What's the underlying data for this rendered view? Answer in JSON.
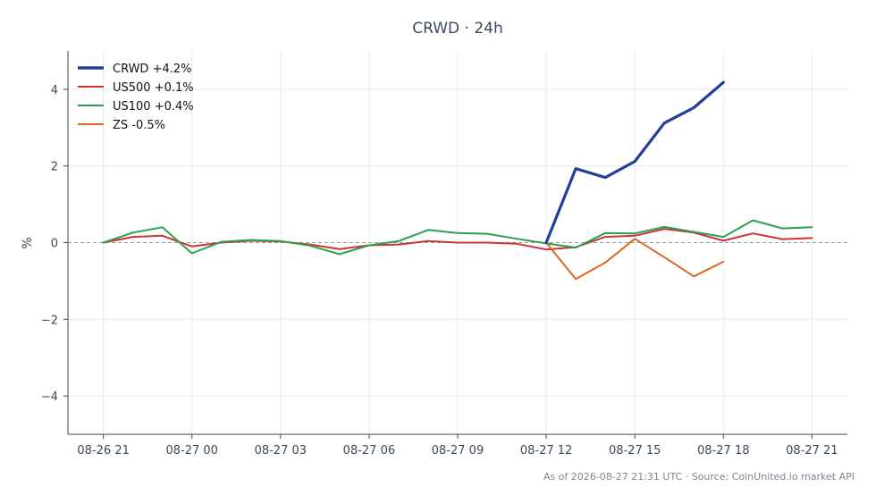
{
  "chart_data": {
    "type": "line",
    "title": "CRWD · 24h",
    "xlabel": "",
    "ylabel": "%",
    "x_tick_labels": [
      "08-26 21",
      "08-27 00",
      "08-27 03",
      "08-27 06",
      "08-27 09",
      "08-27 12",
      "08-27 15",
      "08-27 18",
      "08-27 21"
    ],
    "x_tick_positions": [
      0,
      3,
      6,
      9,
      12,
      15,
      18,
      21,
      24
    ],
    "x_range": [
      -1.2,
      25.2
    ],
    "y_ticks": [
      -4,
      -2,
      0,
      2,
      4
    ],
    "y_tick_labels": [
      "−4",
      "−2",
      "0",
      "2",
      "4"
    ],
    "ylim": [
      -5,
      5
    ],
    "grid": true,
    "zero_line": true,
    "legend_position": "top-left",
    "series": [
      {
        "name": "CRWD +4.2%",
        "color": "#1f3f99",
        "x": [
          15,
          16,
          17,
          18,
          19,
          20,
          21,
          22
        ],
        "y": [
          0.0,
          1.93,
          1.7,
          2.12,
          3.12,
          3.52,
          4.18,
          null
        ]
      },
      {
        "name": "US500 +0.1%",
        "color": "#cc3333",
        "x": [
          0,
          1,
          2,
          3,
          4,
          5,
          6,
          7,
          8,
          9,
          10,
          11,
          12,
          13,
          14,
          15,
          16,
          17,
          18,
          19,
          20,
          21,
          22,
          23,
          24
        ],
        "y": [
          0.0,
          0.15,
          0.18,
          -0.1,
          0.0,
          0.05,
          0.03,
          -0.05,
          -0.17,
          -0.07,
          -0.05,
          0.04,
          0.0,
          0.0,
          -0.03,
          -0.18,
          -0.12,
          0.15,
          0.18,
          0.36,
          0.26,
          0.05,
          0.24,
          0.09,
          0.12
        ]
      },
      {
        "name": "US100 +0.4%",
        "color": "#2e9e4f",
        "x": [
          0,
          1,
          2,
          3,
          4,
          5,
          6,
          7,
          8,
          9,
          10,
          11,
          12,
          13,
          14,
          15,
          16,
          17,
          18,
          19,
          20,
          21,
          22,
          23,
          24
        ],
        "y": [
          0.0,
          0.26,
          0.4,
          -0.28,
          0.02,
          0.07,
          0.04,
          -0.08,
          -0.3,
          -0.07,
          0.04,
          0.33,
          0.25,
          0.23,
          0.1,
          -0.02,
          -0.13,
          0.25,
          0.24,
          0.41,
          0.28,
          0.15,
          0.58,
          0.37,
          0.4
        ]
      },
      {
        "name": "ZS -0.5%",
        "color": "#dd6622",
        "x": [
          15,
          16,
          17,
          18,
          19,
          20,
          21
        ],
        "y": [
          0.0,
          -0.95,
          -0.52,
          0.1,
          -0.38,
          -0.88,
          -0.5
        ]
      }
    ]
  },
  "footer": "As of 2026-08-27 21:31 UTC · Source: CoinUnited.io market API"
}
